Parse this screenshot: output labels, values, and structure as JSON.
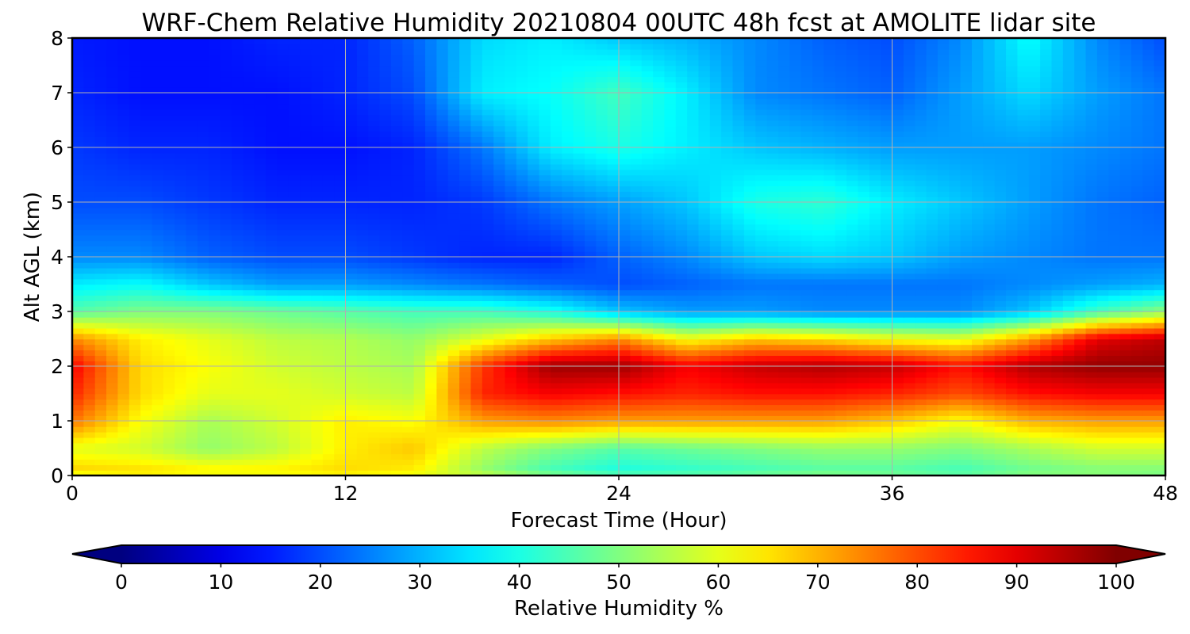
{
  "chart_data": {
    "type": "heatmap",
    "title": "WRF-Chem Relative Humidity 20210804 00UTC 48h fcst at AMOLITE lidar site",
    "xlabel": "Forecast Time (Hour)",
    "ylabel": "Alt AGL (km)",
    "xlim": [
      0,
      48
    ],
    "ylim": [
      0,
      8
    ],
    "x_ticks": [
      0,
      12,
      24,
      36,
      48
    ],
    "y_ticks": [
      0,
      1,
      2,
      3,
      4,
      5,
      6,
      7,
      8
    ],
    "grid": true,
    "colormap": "jet",
    "colorbar": {
      "label": "Relative Humidity %",
      "range": [
        0,
        100
      ],
      "ticks": [
        0,
        10,
        20,
        30,
        40,
        50,
        60,
        70,
        80,
        90,
        100
      ],
      "extend": "both",
      "orientation": "horizontal",
      "placement": "bottom"
    },
    "x": [
      0,
      3,
      6,
      9,
      12,
      15,
      18,
      21,
      24,
      27,
      30,
      33,
      36,
      39,
      42,
      45,
      48
    ],
    "y": [
      0,
      0.1,
      0.5,
      1,
      1.5,
      2,
      2.5,
      3,
      3.5,
      4,
      5,
      6,
      7,
      8
    ],
    "z": [
      [
        58,
        62,
        60,
        60,
        62,
        60,
        58,
        52,
        48,
        48,
        50,
        52,
        50,
        48,
        52,
        52,
        50
      ],
      [
        67,
        66,
        64,
        64,
        66,
        64,
        52,
        44,
        40,
        42,
        44,
        46,
        46,
        44,
        48,
        50,
        50
      ],
      [
        60,
        58,
        52,
        56,
        64,
        68,
        56,
        50,
        46,
        48,
        50,
        52,
        52,
        50,
        54,
        58,
        58
      ],
      [
        76,
        62,
        54,
        58,
        64,
        62,
        72,
        74,
        72,
        72,
        72,
        72,
        68,
        62,
        70,
        72,
        72
      ],
      [
        84,
        66,
        60,
        60,
        58,
        56,
        84,
        88,
        86,
        84,
        86,
        86,
        84,
        80,
        86,
        88,
        88
      ],
      [
        88,
        66,
        62,
        58,
        56,
        54,
        82,
        97,
        97,
        88,
        93,
        95,
        93,
        86,
        95,
        98,
        98
      ],
      [
        74,
        64,
        60,
        56,
        55,
        52,
        60,
        68,
        74,
        62,
        68,
        66,
        62,
        60,
        72,
        90,
        94
      ],
      [
        46,
        50,
        50,
        48,
        46,
        44,
        44,
        40,
        32,
        28,
        28,
        26,
        26,
        26,
        32,
        44,
        52
      ],
      [
        36,
        38,
        32,
        28,
        28,
        26,
        24,
        22,
        20,
        22,
        24,
        24,
        24,
        24,
        26,
        28,
        30
      ],
      [
        26,
        26,
        22,
        20,
        20,
        18,
        16,
        16,
        22,
        26,
        32,
        34,
        32,
        28,
        26,
        24,
        24
      ],
      [
        20,
        20,
        18,
        16,
        16,
        16,
        18,
        24,
        28,
        32,
        40,
        42,
        36,
        32,
        28,
        24,
        22
      ],
      [
        18,
        16,
        16,
        14,
        14,
        16,
        24,
        36,
        40,
        36,
        32,
        30,
        28,
        28,
        28,
        26,
        24
      ],
      [
        16,
        14,
        14,
        14,
        16,
        20,
        36,
        38,
        44,
        36,
        26,
        24,
        22,
        28,
        34,
        28,
        24
      ],
      [
        15,
        14,
        14,
        16,
        16,
        22,
        34,
        36,
        32,
        30,
        26,
        22,
        20,
        26,
        38,
        26,
        20
      ]
    ]
  }
}
